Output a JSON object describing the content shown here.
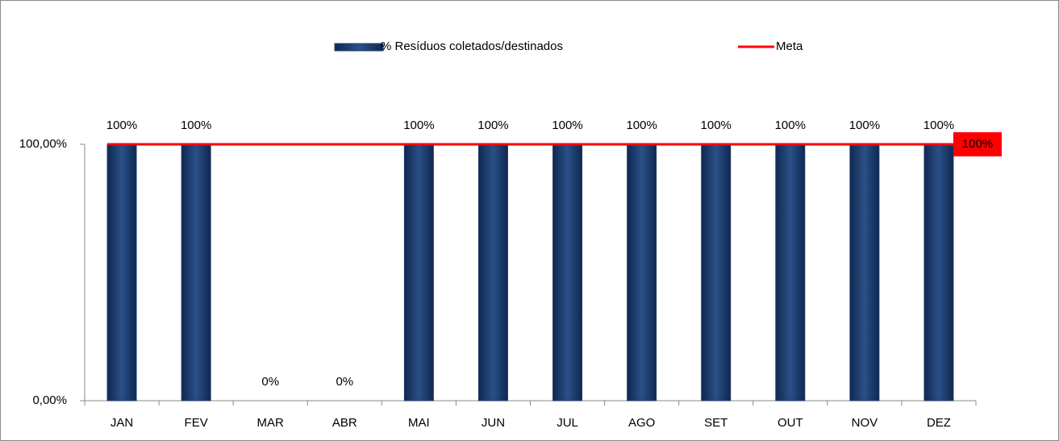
{
  "chart_data": {
    "type": "bar",
    "categories": [
      "JAN",
      "FEV",
      "MAR",
      "ABR",
      "MAI",
      "JUN",
      "JUL",
      "AGO",
      "SET",
      "OUT",
      "NOV",
      "DEZ"
    ],
    "series": [
      {
        "name": "% Resíduos coletados/destinados",
        "type": "bar",
        "color": "#1f3d6b",
        "values": [
          100,
          100,
          0,
          0,
          100,
          100,
          100,
          100,
          100,
          100,
          100,
          100
        ],
        "value_labels": [
          "100%",
          "100%",
          "0%",
          "0%",
          "100%",
          "100%",
          "100%",
          "100%",
          "100%",
          "100%",
          "100%",
          "100%"
        ]
      },
      {
        "name": "Meta",
        "type": "line",
        "color": "#ff0000",
        "values": [
          100,
          100,
          100,
          100,
          100,
          100,
          100,
          100,
          100,
          100,
          100,
          100
        ],
        "value_labels": [
          null,
          null,
          null,
          null,
          null,
          null,
          null,
          null,
          null,
          null,
          null,
          "100%"
        ]
      }
    ],
    "ylim": [
      0,
      100
    ],
    "yticks": [
      {
        "value": 0,
        "label": "0,00%"
      },
      {
        "value": 100,
        "label": "100,00%"
      }
    ],
    "legend": "top"
  }
}
